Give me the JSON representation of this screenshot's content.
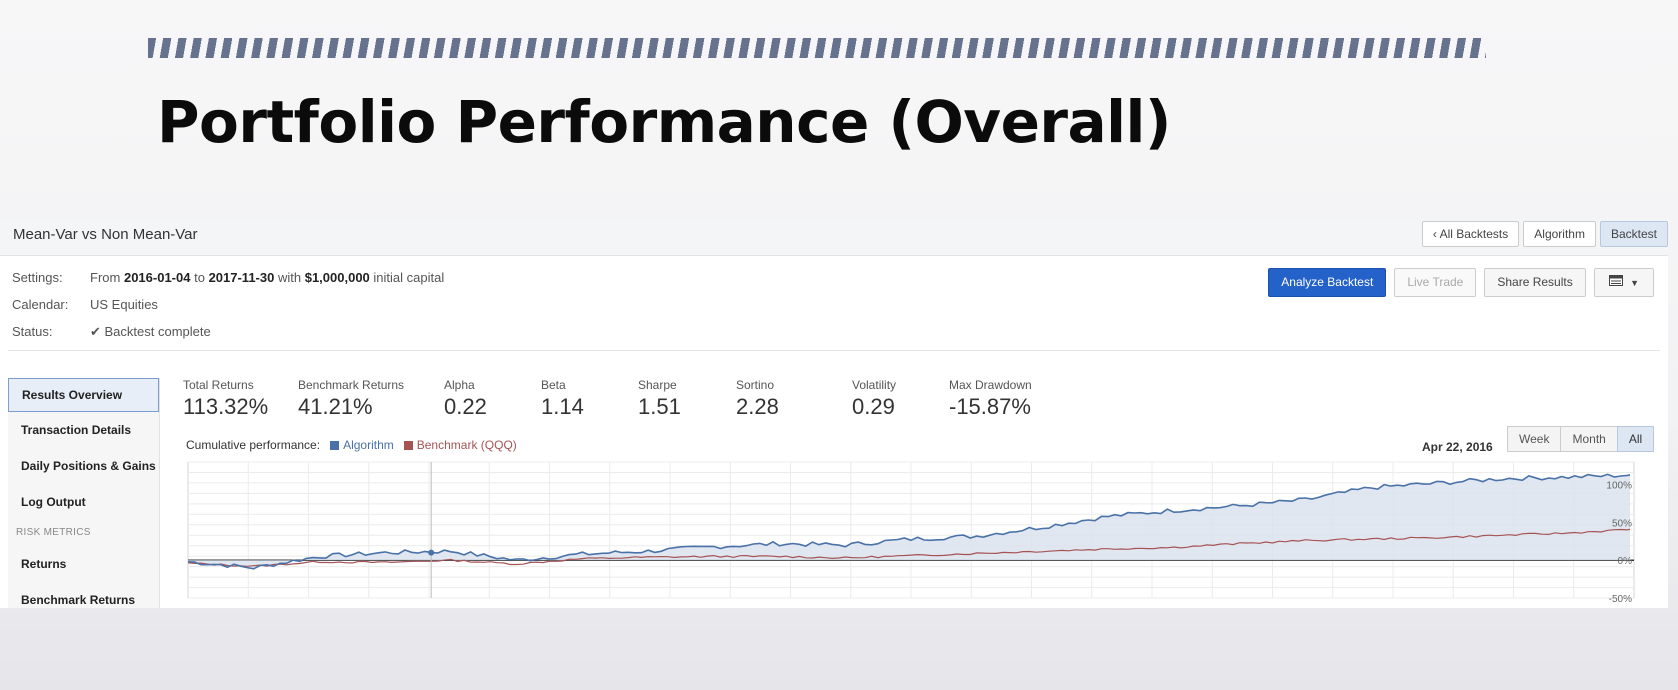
{
  "slide": {
    "title": "Portfolio Performance (Overall)"
  },
  "header": {
    "backtest_name": "Mean-Var vs Non Mean-Var",
    "nav": {
      "all_backtests": "All Backtests",
      "algorithm": "Algorithm",
      "backtest": "Backtest"
    }
  },
  "settings": {
    "settings_label": "Settings:",
    "from_prefix": "From",
    "start_date": "2016-01-04",
    "to_word": "to",
    "end_date": "2017-11-30",
    "with_word": "with",
    "capital": "$1,000,000",
    "capital_suffix": "initial capital",
    "calendar_label": "Calendar:",
    "calendar_value": "US Equities",
    "status_label": "Status:",
    "status_value": "Backtest complete"
  },
  "actions": {
    "analyze": "Analyze Backtest",
    "live_trade": "Live Trade",
    "share": "Share Results"
  },
  "sidebar": {
    "items": [
      {
        "label": "Results Overview",
        "active": true
      },
      {
        "label": "Transaction Details"
      },
      {
        "label": "Daily Positions & Gains"
      },
      {
        "label": "Log Output"
      }
    ],
    "risk_heading": "RISK METRICS",
    "risk_items": [
      {
        "label": "Returns"
      },
      {
        "label": "Benchmark Returns"
      }
    ]
  },
  "metrics": [
    {
      "label": "Total Returns",
      "value": "113.32%"
    },
    {
      "label": "Benchmark Returns",
      "value": "41.21%"
    },
    {
      "label": "Alpha",
      "value": "0.22"
    },
    {
      "label": "Beta",
      "value": "1.14"
    },
    {
      "label": "Sharpe",
      "value": "1.51"
    },
    {
      "label": "Sortino",
      "value": "2.28"
    },
    {
      "label": "Volatility",
      "value": "0.29"
    },
    {
      "label": "Max Drawdown",
      "value": "-15.87%"
    }
  ],
  "chart_header": {
    "title": "Cumulative performance:",
    "legend_algo": "Algorithm",
    "legend_bench": "Benchmark (QQQ)",
    "selected_date": "Apr 22, 2016",
    "ranges": [
      "Week",
      "Month",
      "All"
    ],
    "active_range": "All"
  },
  "colors": {
    "algorithm": "#4a72a8",
    "benchmark": "#a65354",
    "primary_button": "#2461c9",
    "stripe": "#67728f"
  },
  "chart_data": {
    "type": "line",
    "x_range": [
      "2016-01-04",
      "2017-11-30"
    ],
    "y_ticks": [
      "100%",
      "50%",
      "0%",
      "-50%"
    ],
    "ylim": [
      -50,
      130
    ],
    "grid": true,
    "legend": "top-left",
    "series": [
      {
        "name": "Algorithm",
        "x": [
          "2016-01",
          "2016-02",
          "2016-03",
          "2016-04",
          "2016-05",
          "2016-06",
          "2016-07",
          "2016-08",
          "2016-09",
          "2016-10",
          "2016-11",
          "2016-12",
          "2017-01",
          "2017-02",
          "2017-03",
          "2017-04",
          "2017-05",
          "2017-06",
          "2017-07",
          "2017-08",
          "2017-09",
          "2017-10",
          "2017-11"
        ],
        "values": [
          -2,
          -10,
          5,
          10,
          12,
          0,
          8,
          12,
          18,
          22,
          20,
          28,
          32,
          44,
          58,
          66,
          72,
          80,
          96,
          102,
          108,
          110,
          113
        ]
      },
      {
        "name": "Benchmark (QQQ)",
        "x": [
          "2016-01",
          "2016-02",
          "2016-03",
          "2016-04",
          "2016-05",
          "2016-06",
          "2016-07",
          "2016-08",
          "2016-09",
          "2016-10",
          "2016-11",
          "2016-12",
          "2017-01",
          "2017-02",
          "2017-03",
          "2017-04",
          "2017-05",
          "2017-06",
          "2017-07",
          "2017-08",
          "2017-09",
          "2017-10",
          "2017-11"
        ],
        "values": [
          -4,
          -8,
          -2,
          -3,
          0,
          -5,
          2,
          4,
          5,
          5,
          3,
          6,
          9,
          12,
          15,
          17,
          22,
          26,
          28,
          30,
          33,
          36,
          41
        ]
      }
    ]
  }
}
